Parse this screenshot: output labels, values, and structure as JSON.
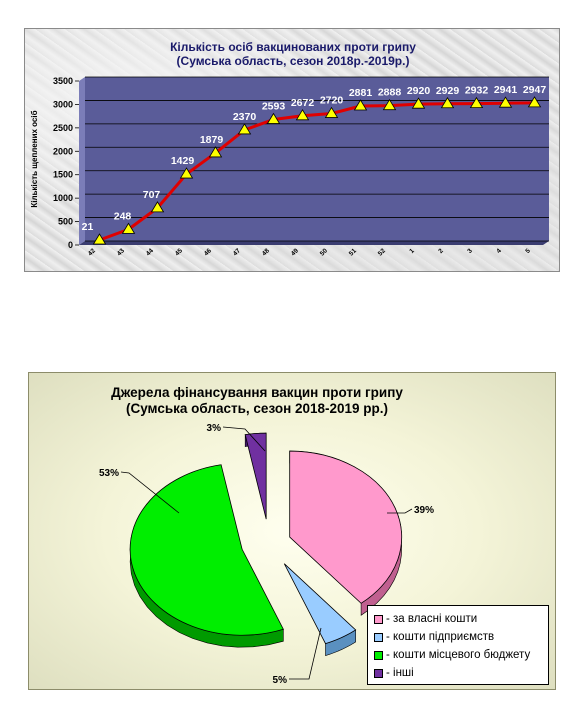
{
  "chart_data": [
    {
      "type": "line",
      "title": "Кількість осіб вакцинованих проти грипу",
      "subtitle": "(Сумська область, сезон 2018р.-2019р.)",
      "xlabel": "",
      "ylabel": "Кількість щеплених осіб",
      "ylim": [
        0,
        3500
      ],
      "yticks": [
        "0",
        "500",
        "1000",
        "1500",
        "2000",
        "2500",
        "3000",
        "3500"
      ],
      "categories": [
        "42",
        "43",
        "44",
        "45",
        "46",
        "47",
        "48",
        "49",
        "50",
        "51",
        "52",
        "1",
        "2",
        "3",
        "4",
        "5"
      ],
      "series": [
        {
          "values": [
            21,
            248,
            707,
            1429,
            1879,
            2370,
            2593,
            2672,
            2720,
            2881,
            2888,
            2920,
            2929,
            2932,
            2941,
            2947
          ],
          "labels": [
            "21",
            "248",
            "707",
            "1429",
            "1879",
            "2370",
            "2593",
            "2672",
            "2720",
            "2881",
            "2888",
            "2920",
            "2929",
            "2932",
            "2941",
            "2947"
          ]
        }
      ],
      "grid": true,
      "colors": {
        "plot_bg": "#5a5c99",
        "line": "#e00000",
        "marker": "#ffff00",
        "label": "#ffffff"
      }
    },
    {
      "type": "pie",
      "title": "Джерела фінансування вакцин проти грипу",
      "subtitle": "(Сумська область, сезон 2018-2019 рр.)",
      "slices": [
        {
          "name": "- за власні кошти",
          "value": 39,
          "label": "39%",
          "color": "#ff99cc"
        },
        {
          "name": "- кошти підприємств",
          "value": 5,
          "label": "5%",
          "color": "#99ccff"
        },
        {
          "name": "- кошти місцевого бюджету",
          "value": 53,
          "label": "53%",
          "color": "#00ee00"
        },
        {
          "name": "- інші",
          "value": 3,
          "label": "3%",
          "color": "#7030a0"
        }
      ],
      "legend_position": "bottom-right"
    }
  ]
}
